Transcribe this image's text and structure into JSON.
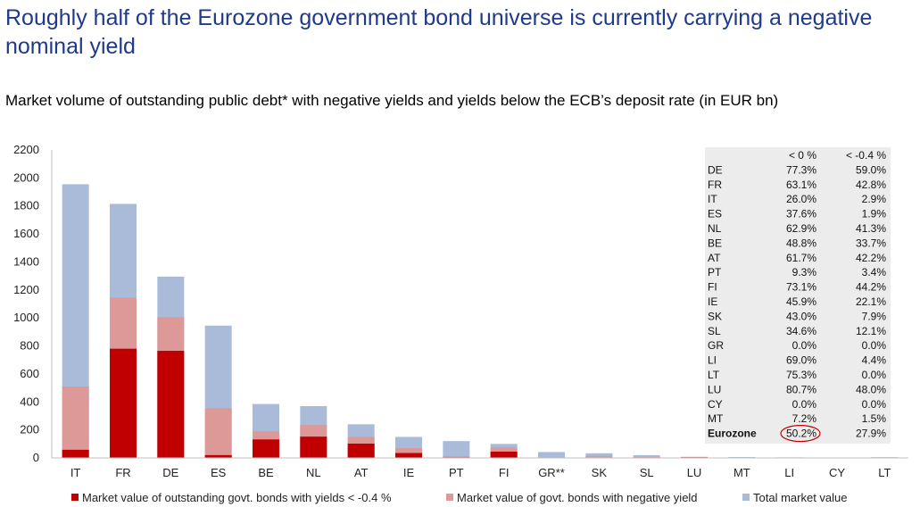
{
  "headline": "Roughly half of the Eurozone government bond universe is currently carrying a negative nominal yield",
  "chart_data": {
    "type": "bar",
    "stacked": false,
    "overlap": true,
    "title": "Market volume of outstanding public debt* with negative yields and yields below the ECB’s deposit rate (in EUR bn)",
    "ylim": [
      0,
      2200
    ],
    "yticks": [
      0,
      200,
      400,
      600,
      800,
      1000,
      1200,
      1400,
      1600,
      1800,
      2000,
      2200
    ],
    "grid": false,
    "legend_position": "bottom",
    "categories": [
      "IT",
      "FR",
      "DE",
      "ES",
      "BE",
      "NL",
      "AT",
      "IE",
      "PT",
      "FI",
      "GR**",
      "SK",
      "SL",
      "LU",
      "MT",
      "LI",
      "CY",
      "LT"
    ],
    "series": [
      {
        "name": "Total market value",
        "color": "#a9bbd8",
        "values": [
          1955,
          1815,
          1295,
          945,
          385,
          370,
          240,
          150,
          120,
          100,
          42,
          33,
          20,
          8,
          6,
          4,
          3,
          5
        ]
      },
      {
        "name": "Market value of govt. bonds with negative yield",
        "color": "#dd9898",
        "values": [
          510,
          1145,
          1005,
          355,
          190,
          235,
          150,
          70,
          12,
          75,
          0,
          14,
          7,
          6,
          0,
          3,
          0,
          4
        ]
      },
      {
        "name": "Market value of outstanding govt. bonds with yields < -0.4 %",
        "color": "#c00000",
        "values": [
          58,
          780,
          765,
          20,
          132,
          152,
          102,
          35,
          4,
          45,
          0,
          2,
          2,
          4,
          0,
          0,
          0,
          0
        ]
      }
    ],
    "legend": [
      {
        "name": "Market value of outstanding govt. bonds with yields < -0.4 %",
        "color": "#c00000"
      },
      {
        "name": "Market value of govt. bonds with negative yield",
        "color": "#dd9898"
      },
      {
        "name": "Total market value",
        "color": "#a9bbd8"
      }
    ],
    "table": {
      "headers": [
        "",
        "< 0 %",
        "< -0.4 %"
      ],
      "rows": [
        [
          "DE",
          "77.3%",
          "59.0%"
        ],
        [
          "FR",
          "63.1%",
          "42.8%"
        ],
        [
          "IT",
          "26.0%",
          "2.9%"
        ],
        [
          "ES",
          "37.6%",
          "1.9%"
        ],
        [
          "NL",
          "62.9%",
          "41.3%"
        ],
        [
          "BE",
          "48.8%",
          "33.7%"
        ],
        [
          "AT",
          "61.7%",
          "42.2%"
        ],
        [
          "PT",
          "9.3%",
          "3.4%"
        ],
        [
          "FI",
          "73.1%",
          "44.2%"
        ],
        [
          "IE",
          "45.9%",
          "22.1%"
        ],
        [
          "SK",
          "43.0%",
          "7.9%"
        ],
        [
          "SL",
          "34.6%",
          "12.1%"
        ],
        [
          "GR",
          "0.0%",
          "0.0%"
        ],
        [
          "LI",
          "69.0%",
          "4.4%"
        ],
        [
          "LT",
          "75.3%",
          "0.0%"
        ],
        [
          "LU",
          "80.7%",
          "48.0%"
        ],
        [
          "CY",
          "0.0%",
          "0.0%"
        ],
        [
          "MT",
          "7.2%",
          "1.5%"
        ],
        [
          "Eurozone",
          "50.2%",
          "27.9%"
        ]
      ],
      "background": "#ececec",
      "highlight_color": "#c00000"
    }
  }
}
